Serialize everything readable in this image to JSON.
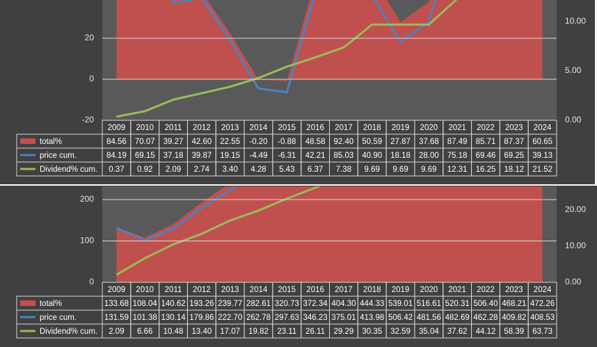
{
  "chart_data": [
    {
      "type": "combo",
      "categories": [
        "2009",
        "2010",
        "2011",
        "2012",
        "2013",
        "2014",
        "2015",
        "2016",
        "2017",
        "2018",
        "2019",
        "2020",
        "2021",
        "2022",
        "2023",
        "2024"
      ],
      "ylim": [
        -20,
        38.64
      ],
      "yticks": [
        -20,
        0,
        20
      ],
      "y2lim": [
        0,
        12.18
      ],
      "y2ticks": [
        {
          "value": 0,
          "label": "0.00"
        },
        {
          "value": 5,
          "label": "5.00"
        },
        {
          "value": 10,
          "label": "10.00"
        }
      ],
      "grid": true,
      "series": [
        {
          "name": "total%",
          "type": "area",
          "color": "#c0504d",
          "values": [
            84.56,
            70.07,
            39.27,
            42.6,
            22.55,
            -0.2,
            -0.88,
            48.58,
            92.4,
            50.59,
            27.87,
            37.68,
            87.49,
            85.71,
            87.37,
            60.65
          ],
          "value_labels": [
            "84.56",
            "70.07",
            "39.27",
            "42.60",
            "22.55",
            "-0.20",
            "-0.88",
            "48.58",
            "92.40",
            "50.59",
            "27.87",
            "37.68",
            "87.49",
            "85.71",
            "87.37",
            "60.65"
          ]
        },
        {
          "name": "price cum.",
          "type": "line",
          "color": "#4f81bd",
          "values": [
            84.19,
            69.15,
            37.18,
            39.87,
            19.15,
            -4.49,
            -6.31,
            42.21,
            85.03,
            40.9,
            18.18,
            28,
            75.18,
            69.46,
            69.25,
            39.13
          ],
          "value_labels": [
            "84.19",
            "69.15",
            "37.18",
            "39.87",
            "19.15",
            "-4.49",
            "-6.31",
            "42.21",
            "85.03",
            "40.90",
            "18.18",
            "28.00",
            "75.18",
            "69.46",
            "69.25",
            "39.13"
          ]
        },
        {
          "name": "Dividend% cum.",
          "type": "line",
          "axis": "y2",
          "color": "#9bbb59",
          "values": [
            0.37,
            0.92,
            2.09,
            2.74,
            3.4,
            4.28,
            5.43,
            6.37,
            7.38,
            9.69,
            9.69,
            9.69,
            12.31,
            16.25,
            18.12,
            21.52
          ],
          "value_labels": [
            "0.37",
            "0.92",
            "2.09",
            "2.74",
            "3.40",
            "4.28",
            "5.43",
            "6.37",
            "7.38",
            "9.69",
            "9.69",
            "9.69",
            "12.31",
            "16.25",
            "18.12",
            "21.52"
          ]
        }
      ]
    },
    {
      "type": "combo",
      "categories": [
        "2009",
        "2010",
        "2011",
        "2012",
        "2013",
        "2014",
        "2015",
        "2016",
        "2017",
        "2018",
        "2019",
        "2020",
        "2021",
        "2022",
        "2023",
        "2024"
      ],
      "ylim": [
        0,
        232
      ],
      "yticks": [
        0,
        100,
        200
      ],
      "y2lim": [
        0,
        26.5
      ],
      "y2ticks": [
        {
          "value": 0,
          "label": "0.00"
        },
        {
          "value": 10,
          "label": "10.00"
        },
        {
          "value": 20,
          "label": "20.00"
        }
      ],
      "grid": true,
      "series": [
        {
          "name": "total%",
          "type": "area",
          "color": "#c0504d",
          "values": [
            133.68,
            108.04,
            140.62,
            193.26,
            239.77,
            282.61,
            320.73,
            372.34,
            404.3,
            444.33,
            539.01,
            516.61,
            520.31,
            506.4,
            468.21,
            472.26
          ],
          "value_labels": [
            "133.68",
            "108.04",
            "140.62",
            "193.26",
            "239.77",
            "282.61",
            "320.73",
            "372.34",
            "404.30",
            "444.33",
            "539.01",
            "516.61",
            "520.31",
            "506.40",
            "468.21",
            "472.26"
          ]
        },
        {
          "name": "price cum.",
          "type": "line",
          "color": "#4f81bd",
          "values": [
            131.59,
            101.38,
            130.14,
            179.86,
            222.7,
            262.78,
            297.63,
            346.23,
            375.01,
            413.98,
            506.42,
            481.56,
            482.69,
            462.28,
            409.82,
            408.53
          ],
          "value_labels": [
            "131.59",
            "101.38",
            "130.14",
            "179.86",
            "222.70",
            "262.78",
            "297.63",
            "346.23",
            "375.01",
            "413.98",
            "506.42",
            "481.56",
            "482.69",
            "462.28",
            "409.82",
            "408.53"
          ]
        },
        {
          "name": "Dividend% cum.",
          "type": "line",
          "axis": "y2",
          "color": "#9bbb59",
          "values": [
            2.09,
            6.66,
            10.48,
            13.4,
            17.07,
            19.82,
            23.11,
            26.11,
            29.29,
            30.35,
            32.59,
            35.04,
            37.62,
            44.12,
            58.39,
            63.73
          ],
          "value_labels": [
            "2.09",
            "6.66",
            "10.48",
            "13.40",
            "17.07",
            "19.82",
            "23.11",
            "26.11",
            "29.29",
            "30.35",
            "32.59",
            "35.04",
            "37.62",
            "44.12",
            "58.39",
            "63.73"
          ]
        }
      ]
    }
  ]
}
